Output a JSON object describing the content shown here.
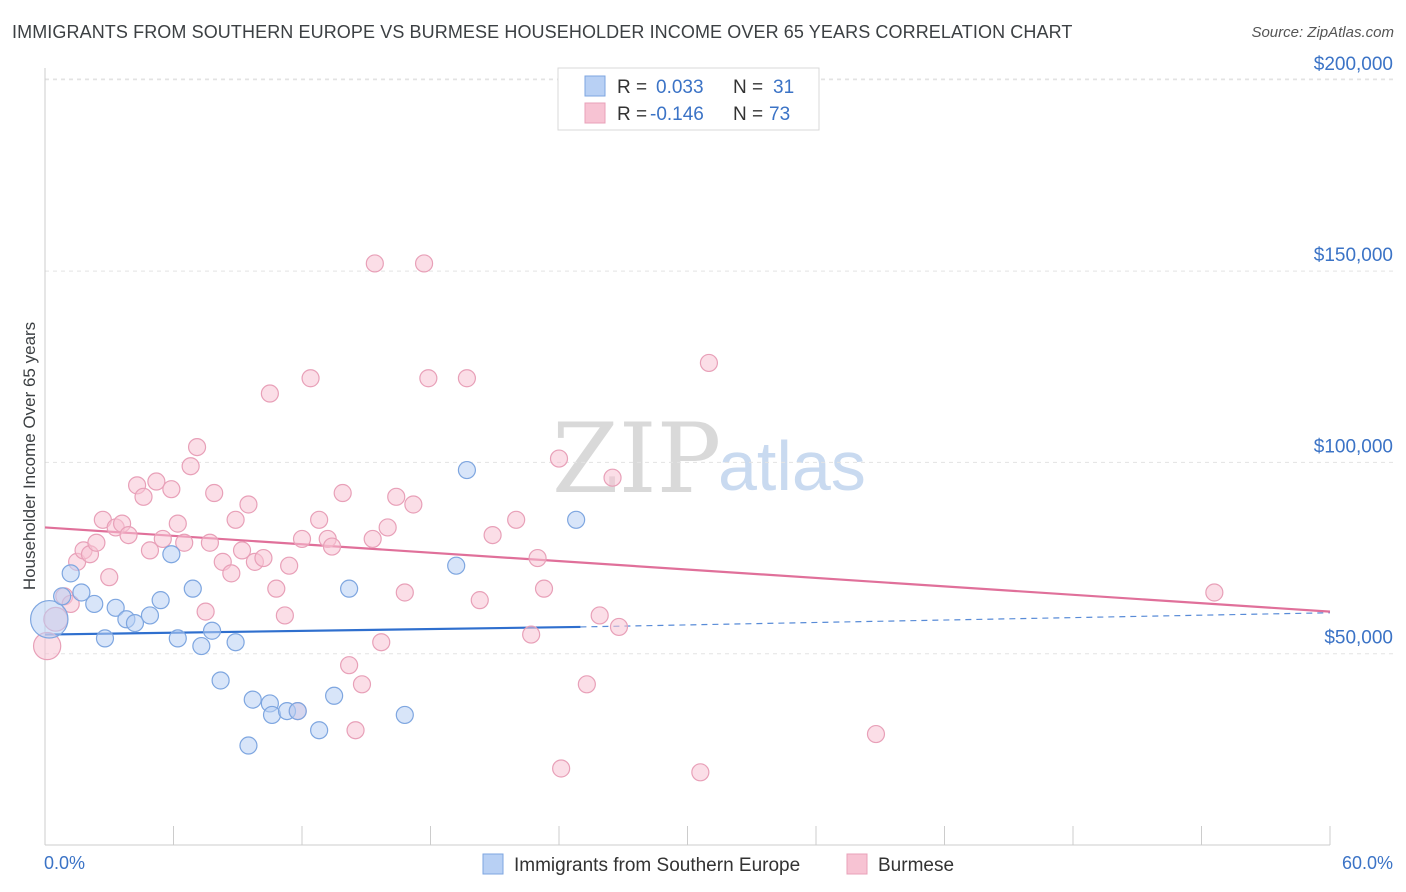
{
  "header": {
    "title": "IMMIGRANTS FROM SOUTHERN EUROPE VS BURMESE HOUSEHOLDER INCOME OVER 65 YEARS CORRELATION CHART",
    "source": "Source: ZipAtlas.com"
  },
  "watermark": {
    "zip": "ZIP",
    "atlas": "atlas"
  },
  "stats": {
    "r_label": "R =",
    "n_label": "N =",
    "rows": [
      {
        "r": "0.033",
        "n": "31"
      },
      {
        "r": "-0.146",
        "n": "73"
      }
    ]
  },
  "legend": {
    "items": [
      {
        "label": "Immigrants from Southern Europe"
      },
      {
        "label": "Burmese"
      }
    ]
  },
  "colors": {
    "blue_fill": "#b8d0f4",
    "blue_stroke": "#7ea6e0",
    "blue_line": "#2f6fce",
    "pink_fill": "#f7c3d3",
    "pink_stroke": "#e8a0b8",
    "pink_line": "#e0709a",
    "axis_label": "#3b73c6"
  },
  "chart_data": {
    "type": "scatter",
    "title": "IMMIGRANTS FROM SOUTHERN EUROPE VS BURMESE HOUSEHOLDER INCOME OVER 65 YEARS CORRELATION CHART",
    "xlabel": "",
    "ylabel": "Householder Income Over 65 years",
    "xlim": [
      0,
      60
    ],
    "ylim": [
      0,
      205000
    ],
    "x_tick_labels": [
      "0.0%",
      "60.0%"
    ],
    "y_ticks": [
      {
        "value": 50000,
        "label": "$50,000"
      },
      {
        "value": 100000,
        "label": "$100,000"
      },
      {
        "value": 150000,
        "label": "$150,000"
      },
      {
        "value": 200000,
        "label": "$200,000"
      }
    ],
    "series": [
      {
        "name": "Immigrants from Southern Europe",
        "color": "blue",
        "r": 0.033,
        "n": 31,
        "trend": {
          "x0": 0,
          "y0": 55000,
          "x1": 25,
          "y1": 57000,
          "dashed_to_x": 60,
          "dashed_to_y": 60700
        },
        "points": [
          [
            0.2,
            59000,
            2.2
          ],
          [
            0.8,
            65000,
            1
          ],
          [
            1.2,
            71000,
            1
          ],
          [
            1.7,
            66000,
            1
          ],
          [
            2.3,
            63000,
            1
          ],
          [
            2.8,
            54000,
            1
          ],
          [
            3.3,
            62000,
            1
          ],
          [
            3.8,
            59000,
            1
          ],
          [
            4.2,
            58000,
            1
          ],
          [
            4.9,
            60000,
            1
          ],
          [
            5.4,
            64000,
            1
          ],
          [
            5.9,
            76000,
            1
          ],
          [
            6.2,
            54000,
            1
          ],
          [
            6.9,
            67000,
            1
          ],
          [
            7.3,
            52000,
            1
          ],
          [
            7.8,
            56000,
            1
          ],
          [
            8.2,
            43000,
            1
          ],
          [
            8.9,
            53000,
            1
          ],
          [
            9.5,
            26000,
            1
          ],
          [
            9.7,
            38000,
            1
          ],
          [
            10.5,
            37000,
            1
          ],
          [
            10.6,
            34000,
            1
          ],
          [
            11.3,
            35000,
            1
          ],
          [
            11.8,
            35000,
            1
          ],
          [
            12.8,
            30000,
            1
          ],
          [
            13.5,
            39000,
            1
          ],
          [
            14.2,
            67000,
            1
          ],
          [
            16.8,
            34000,
            1
          ],
          [
            19.2,
            73000,
            1
          ],
          [
            19.7,
            98000,
            1
          ],
          [
            24.8,
            85000,
            1
          ]
        ]
      },
      {
        "name": "Burmese",
        "color": "pink",
        "r": -0.146,
        "n": 73,
        "trend": {
          "x0": 0,
          "y0": 83000,
          "x1": 60,
          "y1": 61000
        },
        "points": [
          [
            0.1,
            52000,
            1.6
          ],
          [
            0.5,
            59000,
            1.4
          ],
          [
            0.9,
            65000,
            1
          ],
          [
            1.2,
            63000,
            1
          ],
          [
            1.5,
            74000,
            1
          ],
          [
            1.8,
            77000,
            1
          ],
          [
            2.1,
            76000,
            1
          ],
          [
            2.4,
            79000,
            1
          ],
          [
            2.7,
            85000,
            1
          ],
          [
            3.0,
            70000,
            1
          ],
          [
            3.3,
            83000,
            1
          ],
          [
            3.6,
            84000,
            1
          ],
          [
            3.9,
            81000,
            1
          ],
          [
            4.3,
            94000,
            1
          ],
          [
            4.6,
            91000,
            1
          ],
          [
            4.9,
            77000,
            1
          ],
          [
            5.2,
            95000,
            1
          ],
          [
            5.5,
            80000,
            1
          ],
          [
            5.9,
            93000,
            1
          ],
          [
            6.2,
            84000,
            1
          ],
          [
            6.5,
            79000,
            1
          ],
          [
            6.8,
            99000,
            1
          ],
          [
            7.1,
            104000,
            1
          ],
          [
            7.5,
            61000,
            1
          ],
          [
            7.7,
            79000,
            1
          ],
          [
            7.9,
            92000,
            1
          ],
          [
            8.3,
            74000,
            1
          ],
          [
            8.7,
            71000,
            1
          ],
          [
            8.9,
            85000,
            1
          ],
          [
            9.2,
            77000,
            1
          ],
          [
            9.5,
            89000,
            1
          ],
          [
            9.8,
            74000,
            1
          ],
          [
            10.2,
            75000,
            1
          ],
          [
            10.5,
            118000,
            1
          ],
          [
            10.8,
            67000,
            1
          ],
          [
            11.2,
            60000,
            1
          ],
          [
            11.4,
            73000,
            1
          ],
          [
            11.8,
            35000,
            1
          ],
          [
            12.0,
            80000,
            1
          ],
          [
            12.4,
            122000,
            1
          ],
          [
            12.8,
            85000,
            1
          ],
          [
            13.2,
            80000,
            1
          ],
          [
            13.4,
            78000,
            1
          ],
          [
            13.9,
            92000,
            1
          ],
          [
            14.2,
            47000,
            1
          ],
          [
            14.8,
            42000,
            1
          ],
          [
            14.5,
            30000,
            1
          ],
          [
            15.3,
            80000,
            1
          ],
          [
            15.4,
            152000,
            1
          ],
          [
            15.7,
            53000,
            1
          ],
          [
            16.0,
            83000,
            1
          ],
          [
            16.4,
            91000,
            1
          ],
          [
            16.8,
            66000,
            1
          ],
          [
            17.2,
            89000,
            1
          ],
          [
            17.7,
            152000,
            1
          ],
          [
            17.9,
            122000,
            1
          ],
          [
            19.7,
            122000,
            1
          ],
          [
            20.3,
            64000,
            1
          ],
          [
            20.9,
            81000,
            1
          ],
          [
            22.0,
            85000,
            1
          ],
          [
            22.7,
            55000,
            1
          ],
          [
            23.0,
            75000,
            1
          ],
          [
            23.3,
            67000,
            1
          ],
          [
            24.0,
            101000,
            1
          ],
          [
            24.1,
            20000,
            1
          ],
          [
            25.3,
            42000,
            1
          ],
          [
            25.9,
            60000,
            1
          ],
          [
            26.5,
            96000,
            1
          ],
          [
            26.8,
            57000,
            1
          ],
          [
            30.6,
            19000,
            1
          ],
          [
            31.0,
            126000,
            1
          ],
          [
            38.8,
            29000,
            1
          ],
          [
            54.6,
            66000,
            1
          ]
        ]
      }
    ]
  }
}
